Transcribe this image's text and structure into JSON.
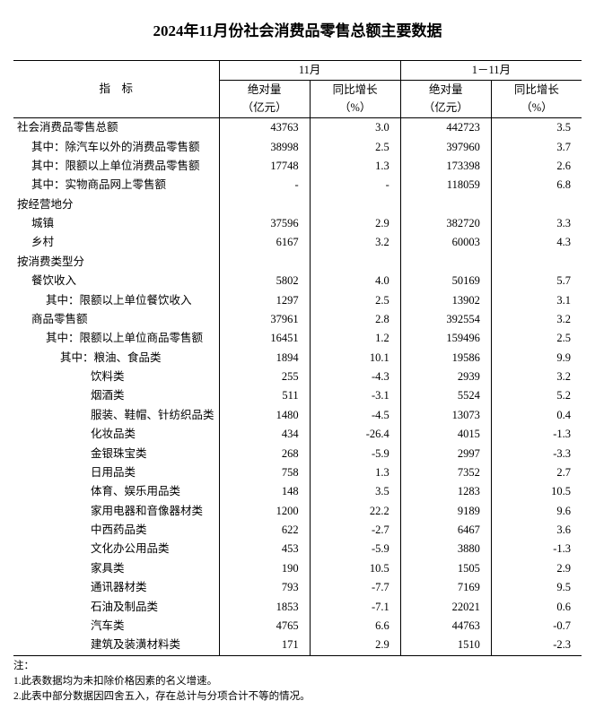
{
  "title": "2024年11月份社会消费品零售总额主要数据",
  "headers": {
    "indicator": "指　标",
    "nov": "11月",
    "jan_nov": "1－11月",
    "abs": "绝对量（亿元）",
    "yoy": "同比增长（%）",
    "abs1": "绝对量",
    "abs2": "（亿元）",
    "yoy1": "同比增长",
    "yoy2": "（%）"
  },
  "rows": [
    {
      "label": "社会消费品零售总额",
      "indent": 0,
      "v": [
        "43763",
        "3.0",
        "442723",
        "3.5"
      ]
    },
    {
      "label": "其中：除汽车以外的消费品零售额",
      "indent": 1,
      "v": [
        "38998",
        "2.5",
        "397960",
        "3.7"
      ]
    },
    {
      "label": "其中：限额以上单位消费品零售额",
      "indent": 1,
      "v": [
        "17748",
        "1.3",
        "173398",
        "2.6"
      ]
    },
    {
      "label": "其中：实物商品网上零售额",
      "indent": 1,
      "v": [
        "-",
        "-",
        "118059",
        "6.8"
      ]
    },
    {
      "label": "按经营地分",
      "indent": 0,
      "v": [
        "",
        "",
        "",
        ""
      ]
    },
    {
      "label": "城镇",
      "indent": 1,
      "v": [
        "37596",
        "2.9",
        "382720",
        "3.3"
      ]
    },
    {
      "label": "乡村",
      "indent": 1,
      "v": [
        "6167",
        "3.2",
        "60003",
        "4.3"
      ]
    },
    {
      "label": "按消费类型分",
      "indent": 0,
      "v": [
        "",
        "",
        "",
        ""
      ]
    },
    {
      "label": "餐饮收入",
      "indent": 1,
      "v": [
        "5802",
        "4.0",
        "50169",
        "5.7"
      ]
    },
    {
      "label": "其中：限额以上单位餐饮收入",
      "indent": 2,
      "v": [
        "1297",
        "2.5",
        "13902",
        "3.1"
      ]
    },
    {
      "label": "商品零售额",
      "indent": 1,
      "v": [
        "37961",
        "2.8",
        "392554",
        "3.2"
      ]
    },
    {
      "label": "其中：限额以上单位商品零售额",
      "indent": 2,
      "v": [
        "16451",
        "1.2",
        "159496",
        "2.5"
      ]
    },
    {
      "label": "其中：粮油、食品类",
      "indent": 3,
      "v": [
        "1894",
        "10.1",
        "19586",
        "9.9"
      ]
    },
    {
      "label": "饮料类",
      "indent": 4,
      "v": [
        "255",
        "-4.3",
        "2939",
        "3.2"
      ]
    },
    {
      "label": "烟酒类",
      "indent": 4,
      "v": [
        "511",
        "-3.1",
        "5524",
        "5.2"
      ]
    },
    {
      "label": "服装、鞋帽、针纺织品类",
      "indent": 4,
      "v": [
        "1480",
        "-4.5",
        "13073",
        "0.4"
      ]
    },
    {
      "label": "化妆品类",
      "indent": 4,
      "v": [
        "434",
        "-26.4",
        "4015",
        "-1.3"
      ]
    },
    {
      "label": "金银珠宝类",
      "indent": 4,
      "v": [
        "268",
        "-5.9",
        "2997",
        "-3.3"
      ]
    },
    {
      "label": "日用品类",
      "indent": 4,
      "v": [
        "758",
        "1.3",
        "7352",
        "2.7"
      ]
    },
    {
      "label": "体育、娱乐用品类",
      "indent": 4,
      "v": [
        "148",
        "3.5",
        "1283",
        "10.5"
      ]
    },
    {
      "label": "家用电器和音像器材类",
      "indent": 4,
      "v": [
        "1200",
        "22.2",
        "9189",
        "9.6"
      ]
    },
    {
      "label": "中西药品类",
      "indent": 4,
      "v": [
        "622",
        "-2.7",
        "6467",
        "3.6"
      ]
    },
    {
      "label": "文化办公用品类",
      "indent": 4,
      "v": [
        "453",
        "-5.9",
        "3880",
        "-1.3"
      ]
    },
    {
      "label": "家具类",
      "indent": 4,
      "v": [
        "190",
        "10.5",
        "1505",
        "2.9"
      ]
    },
    {
      "label": "通讯器材类",
      "indent": 4,
      "v": [
        "793",
        "-7.7",
        "7169",
        "9.5"
      ]
    },
    {
      "label": "石油及制品类",
      "indent": 4,
      "v": [
        "1853",
        "-7.1",
        "22021",
        "0.6"
      ]
    },
    {
      "label": "汽车类",
      "indent": 4,
      "v": [
        "4765",
        "6.6",
        "44763",
        "-0.7"
      ]
    },
    {
      "label": "建筑及装潢材料类",
      "indent": 4,
      "v": [
        "171",
        "2.9",
        "1510",
        "-2.3"
      ]
    }
  ],
  "notes": {
    "header": "注：",
    "n1": "1.此表数据均为未扣除价格因素的名义增速。",
    "n2": "2.此表中部分数据因四舍五入，存在总计与分项合计不等的情况。"
  }
}
